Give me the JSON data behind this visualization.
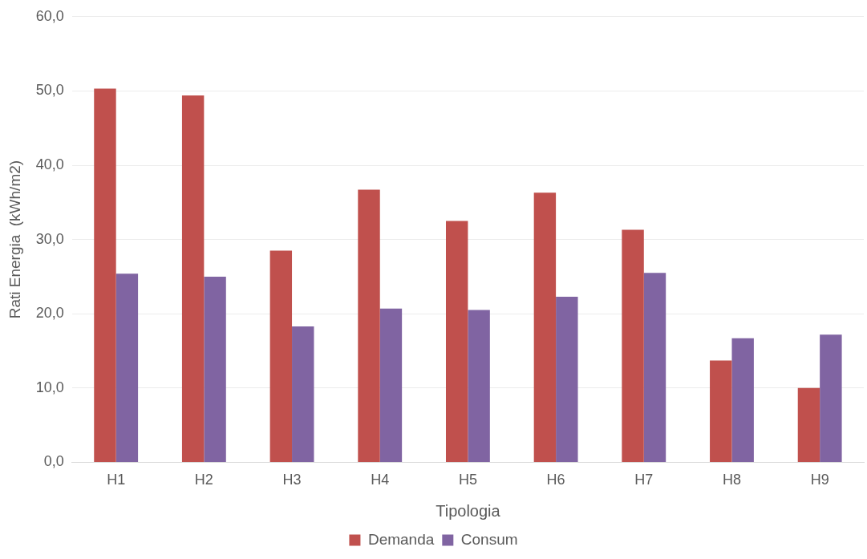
{
  "chart_data": {
    "type": "bar",
    "xlabel": "Tipologia",
    "ylabel": "Rati Energia  (kWh/m2)",
    "categories": [
      "H1",
      "H2",
      "H3",
      "H4",
      "H5",
      "H6",
      "H7",
      "H8",
      "H9"
    ],
    "series": [
      {
        "name": "Demanda",
        "color": "#c0504d",
        "values": [
          50.3,
          49.4,
          28.5,
          36.7,
          32.5,
          36.3,
          31.3,
          13.7,
          10.0
        ]
      },
      {
        "name": "Consum",
        "color": "#8064a2",
        "values": [
          25.4,
          25.0,
          18.3,
          20.7,
          20.5,
          22.3,
          25.5,
          16.7,
          17.2
        ]
      }
    ],
    "ylim": [
      0,
      60
    ],
    "yticks": [
      {
        "value": 0,
        "label": "0,0"
      },
      {
        "value": 10,
        "label": "10,0"
      },
      {
        "value": 20,
        "label": "20,0"
      },
      {
        "value": 30,
        "label": "30,0"
      },
      {
        "value": 40,
        "label": "40,0"
      },
      {
        "value": 50,
        "label": "50,0"
      },
      {
        "value": 60,
        "label": "60,0"
      }
    ],
    "grid": "y",
    "legend": "bottom"
  }
}
